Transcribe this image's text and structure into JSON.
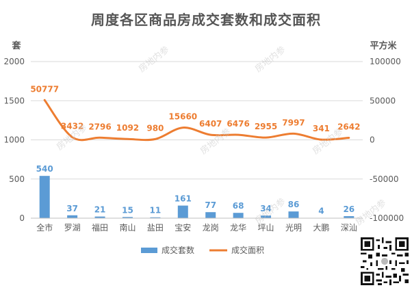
{
  "title": "周度各区商品房成交套数和成交面积",
  "watermark": "房地内参",
  "colors": {
    "bar": "#5B9BD5",
    "line": "#ED7D31",
    "text": "#595959",
    "grid": "#D9D9D9"
  },
  "chart_data": {
    "type": "bar+line",
    "title": "周度各区商品房成交套数和成交面积",
    "categories": [
      "全市",
      "罗湖",
      "福田",
      "南山",
      "盐田",
      "宝安",
      "龙岗",
      "龙华",
      "坪山",
      "光明",
      "大鹏",
      "深汕"
    ],
    "series": [
      {
        "name": "成交套数",
        "type": "bar",
        "axis": "left",
        "values": [
          540,
          37,
          21,
          15,
          11,
          161,
          77,
          68,
          34,
          86,
          4,
          26
        ]
      },
      {
        "name": "成交面积",
        "type": "line",
        "axis": "right",
        "values": [
          50777,
          3432,
          2796,
          1092,
          980,
          15660,
          6407,
          6476,
          2955,
          7997,
          341,
          2642
        ]
      }
    ],
    "y_left": {
      "label": "套",
      "ylim": [
        0,
        2000
      ],
      "ticks": [
        0,
        500,
        1000,
        1500,
        2000
      ]
    },
    "y_right": {
      "label": "平方米",
      "ylim": [
        -100000,
        100000
      ],
      "ticks": [
        -100000,
        -50000,
        0,
        50000,
        100000
      ]
    },
    "grid": true,
    "legend": "bottom"
  }
}
